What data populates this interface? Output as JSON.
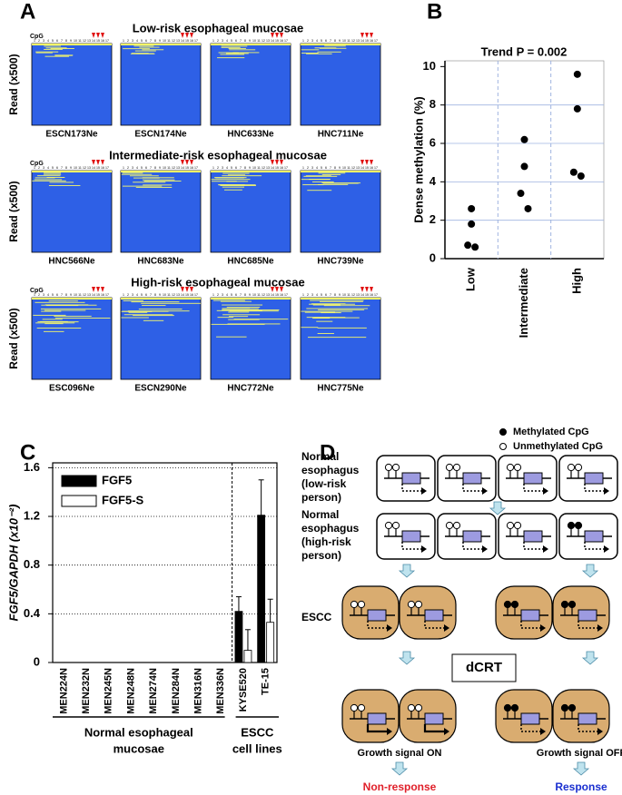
{
  "panel_labels": [
    "A",
    "B",
    "C",
    "D"
  ],
  "panel_a": {
    "cpg_label": "CpG",
    "y_label": "Read (x500)",
    "cpg_numbers": [
      1,
      2,
      3,
      4,
      5,
      6,
      7,
      8,
      9,
      10,
      11,
      12,
      13,
      14,
      15,
      16,
      17
    ],
    "groups": [
      {
        "title": "Low-risk esophageal mucosae",
        "samples": [
          "ESCN173Ne",
          "ESCN174Ne",
          "HNC633Ne",
          "HNC711Ne"
        ]
      },
      {
        "title": "Intermediate-risk esophageal mucosae",
        "samples": [
          "HNC566Ne",
          "HNC683Ne",
          "HNC685Ne",
          "HNC739Ne"
        ]
      },
      {
        "title": "High-risk esophageal mucosae",
        "samples": [
          "ESC096Ne",
          "ESCN290Ne",
          "HNC772Ne",
          "HNC775Ne"
        ]
      }
    ]
  },
  "chart_data": [
    {
      "type": "scatter",
      "title": "Trend P = 0.002",
      "y_label": "Dense methylation (%)",
      "categories": [
        "Low",
        "Intermediate",
        "High"
      ],
      "values": [
        [
          2.6,
          1.8,
          0.7,
          0.6
        ],
        [
          6.2,
          4.8,
          3.4,
          2.6
        ],
        [
          9.6,
          7.8,
          4.5,
          4.3
        ]
      ],
      "color": "#000000",
      "ylim": [
        0,
        10.3
      ],
      "yticks": [
        0,
        2,
        4,
        6,
        8,
        10
      ],
      "grid": true
    },
    {
      "type": "bar",
      "y_label": "FGF5/GAPDH (x10⁻²)",
      "categories": [
        "MEN224N",
        "MEN232N",
        "MEN245N",
        "MEN248N",
        "MEN274N",
        "MEN284N",
        "MEN316N",
        "MEN336N",
        "KYSE520",
        "TE-15"
      ],
      "series": [
        {
          "name": "FGF5",
          "color": "#000000",
          "values": [
            0,
            0,
            0,
            0,
            0,
            0,
            0,
            0,
            0.42,
            1.21
          ],
          "errors": [
            null,
            null,
            null,
            null,
            null,
            null,
            null,
            null,
            0.12,
            0.29
          ]
        },
        {
          "name": "FGF5-S",
          "color": "#ffffff",
          "values": [
            0,
            0,
            0,
            0,
            0,
            0,
            0,
            0,
            0.1,
            0.33
          ],
          "errors": [
            null,
            null,
            null,
            null,
            null,
            null,
            null,
            null,
            0.17,
            0.19
          ]
        }
      ],
      "ylim": [
        0,
        1.64
      ],
      "yticks": [
        0,
        0.4,
        0.8,
        1.2,
        1.6
      ],
      "grid": true,
      "legend": "upper-left",
      "group_labels": [
        [
          "Normal esophageal",
          "mucosae"
        ],
        [
          "ESCC",
          "cell lines"
        ]
      ]
    }
  ],
  "panel_d": {
    "legend": [
      "Methylated CpG",
      "Unmethylated CpG"
    ],
    "rows": [
      [
        "Normal",
        "esophagus",
        "(low-risk",
        "person)"
      ],
      [
        "Normal",
        "esophagus",
        "(high-risk",
        "person)"
      ],
      [
        "ESCC"
      ]
    ],
    "treatment": "dCRT",
    "signals": [
      "Growth signal ON",
      "Growth signal OFF"
    ],
    "outcomes": [
      "Non-response",
      "Response"
    ]
  }
}
